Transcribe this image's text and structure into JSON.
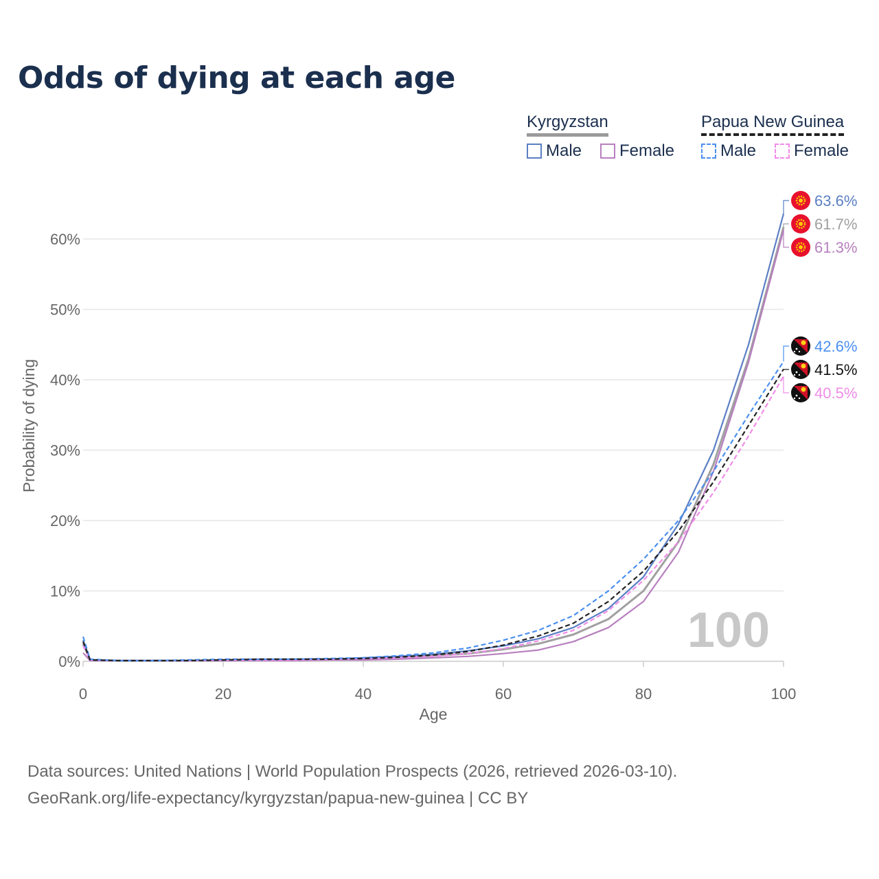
{
  "title": "Odds of dying at each age",
  "legend": {
    "groups": [
      {
        "name": "Kyrgyzstan",
        "items": [
          "Male",
          "Female"
        ]
      },
      {
        "name": "Papua New Guinea",
        "items": [
          "Male",
          "Female"
        ]
      }
    ]
  },
  "colors": {
    "kg_male": "#5b7fc4",
    "kg_female": "#b77fbe",
    "kg_total": "#a0a0a0",
    "png_male": "#4a8ff0",
    "png_female": "#f08ce8",
    "png_total": "#222222"
  },
  "watermark": "100",
  "source_line1": "Data sources: United Nations | World Population Prospects (2026, retrieved 2026-03-10).",
  "source_line2": "GeoRank.org/life-expectancy/kyrgyzstan/papua-new-guinea | CC BY",
  "chart_data": {
    "type": "line",
    "title": "Odds of dying at each age",
    "xlabel": "Age",
    "ylabel": "Probability of dying",
    "xlim": [
      0,
      100
    ],
    "ylim": [
      0,
      65
    ],
    "xticks": [
      0,
      20,
      40,
      60,
      80,
      100
    ],
    "yticks": [
      0,
      10,
      20,
      30,
      40,
      50,
      60
    ],
    "ytick_labels": [
      "0%",
      "10%",
      "20%",
      "30%",
      "40%",
      "50%",
      "60%"
    ],
    "x": [
      0,
      1,
      5,
      10,
      15,
      20,
      25,
      30,
      35,
      40,
      45,
      50,
      55,
      60,
      65,
      70,
      75,
      80,
      85,
      90,
      95,
      100
    ],
    "series": [
      {
        "name": "Kyrgyzstan Male",
        "key": "kg_male",
        "style": "solid",
        "end_label": "63.6%",
        "values": [
          3.0,
          0.2,
          0.1,
          0.1,
          0.1,
          0.2,
          0.2,
          0.3,
          0.3,
          0.5,
          0.7,
          1.0,
          1.5,
          2.2,
          3.2,
          4.8,
          7.5,
          12.0,
          19.5,
          30.0,
          45.0,
          63.6
        ]
      },
      {
        "name": "Kyrgyzstan Total",
        "key": "kg_total",
        "style": "solid",
        "end_label": "61.7%",
        "values": [
          2.5,
          0.2,
          0.1,
          0.1,
          0.1,
          0.1,
          0.2,
          0.2,
          0.3,
          0.4,
          0.5,
          0.8,
          1.1,
          1.7,
          2.5,
          3.8,
          6.0,
          10.0,
          17.0,
          28.0,
          43.0,
          61.7
        ]
      },
      {
        "name": "Kyrgyzstan Female",
        "key": "kg_female",
        "style": "solid",
        "end_label": "61.3%",
        "values": [
          1.2,
          0.1,
          0.1,
          0.1,
          0.1,
          0.1,
          0.1,
          0.1,
          0.2,
          0.2,
          0.3,
          0.5,
          0.7,
          1.1,
          1.6,
          2.8,
          4.8,
          8.5,
          15.5,
          27.0,
          42.5,
          61.3
        ]
      },
      {
        "name": "Papua New Guinea Male",
        "key": "png_male",
        "style": "dashed",
        "end_label": "42.6%",
        "values": [
          3.5,
          0.3,
          0.1,
          0.1,
          0.2,
          0.3,
          0.3,
          0.3,
          0.4,
          0.5,
          0.8,
          1.2,
          1.9,
          3.0,
          4.4,
          6.5,
          10.0,
          14.5,
          20.0,
          27.0,
          35.0,
          42.6
        ]
      },
      {
        "name": "Papua New Guinea Total",
        "key": "png_total",
        "style": "dashed",
        "end_label": "41.5%",
        "values": [
          2.8,
          0.2,
          0.1,
          0.1,
          0.1,
          0.2,
          0.3,
          0.3,
          0.3,
          0.4,
          0.6,
          0.9,
          1.4,
          2.3,
          3.6,
          5.4,
          8.5,
          12.8,
          18.5,
          25.5,
          33.5,
          41.5
        ]
      },
      {
        "name": "Papua New Guinea Female",
        "key": "png_female",
        "style": "dashed",
        "end_label": "40.5%",
        "values": [
          2.2,
          0.2,
          0.1,
          0.1,
          0.1,
          0.2,
          0.2,
          0.2,
          0.3,
          0.4,
          0.5,
          0.7,
          1.1,
          1.8,
          2.9,
          4.4,
          7.2,
          11.5,
          17.0,
          24.0,
          32.0,
          40.5
        ]
      }
    ]
  }
}
